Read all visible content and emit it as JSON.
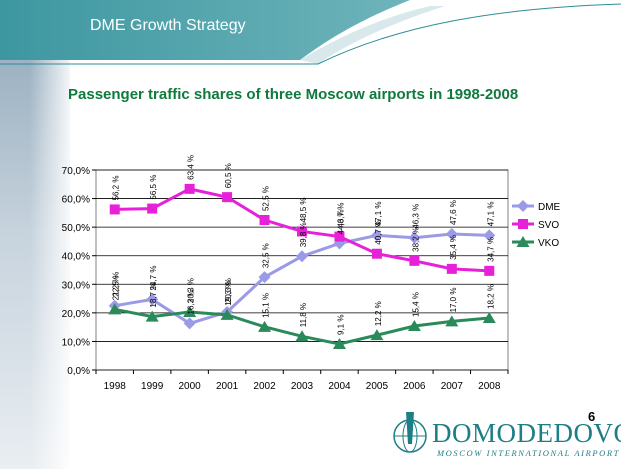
{
  "slide": {
    "header_title": "DME Growth Strategy",
    "subtitle": "Passenger traffic shares of three Moscow airports in 1998-2008",
    "page_number": "6",
    "logo": {
      "word": "DOMODEDOVO",
      "tagline": "MOSCOW INTERNATIONAL AIRPORT",
      "icon": "airplane-globe-logo"
    },
    "colors": {
      "header_band": "#2e8e97",
      "title_green": "#0f7a3c",
      "logo": "#1d7f86"
    }
  },
  "chart_data": {
    "type": "line",
    "categories": [
      "1998",
      "1999",
      "2000",
      "2001",
      "2002",
      "2003",
      "2004",
      "2005",
      "2006",
      "2007",
      "2008"
    ],
    "ylim": [
      0,
      70
    ],
    "yticks": [
      "0,0%",
      "10,0%",
      "20,0%",
      "30,0%",
      "40,0%",
      "50,0%",
      "60,0%",
      "70,0%"
    ],
    "grid": true,
    "legend": "right",
    "series": [
      {
        "name": "DME",
        "color": "#9b9ae6",
        "marker": "diamond",
        "values": [
          22.5,
          24.7,
          16.3,
          20.3,
          32.5,
          39.8,
          44.3,
          47.1,
          46.3,
          47.6,
          47.1
        ],
        "labels": [
          "22,5 %",
          "24,7 %",
          "16,3 %",
          "20,3 %",
          "32,5 %",
          "39,8 %",
          "44,3 %",
          "47,1 %",
          "46,3 %",
          "47,6 %",
          "47,1 %"
        ]
      },
      {
        "name": "SVO",
        "color": "#e621d8",
        "marker": "square",
        "values": [
          56.2,
          56.5,
          63.4,
          60.5,
          52.5,
          48.5,
          46.7,
          40.7,
          38.2,
          35.4,
          34.7
        ],
        "labels": [
          "56,2 %",
          "56,5 %",
          "63,4 %",
          "60,5 %",
          "52,5 %",
          "48,5 %",
          "46,7 %",
          "40,7 %",
          "38,2 %",
          "35,4 %",
          "34,7 %"
        ]
      },
      {
        "name": "VKO",
        "color": "#2a8a5a",
        "marker": "triangle",
        "values": [
          21.2,
          18.7,
          20.3,
          19.3,
          15.1,
          11.8,
          9.1,
          12.2,
          15.4,
          17.0,
          18.2
        ],
        "labels": [
          "21,2 %",
          "18,7 %",
          "20,3 %",
          "19,3 %",
          "15,1 %",
          "11,8 %",
          "9,1 %",
          "12,2 %",
          "15,4 %",
          "17,0 %",
          "18,2 %"
        ]
      }
    ]
  }
}
